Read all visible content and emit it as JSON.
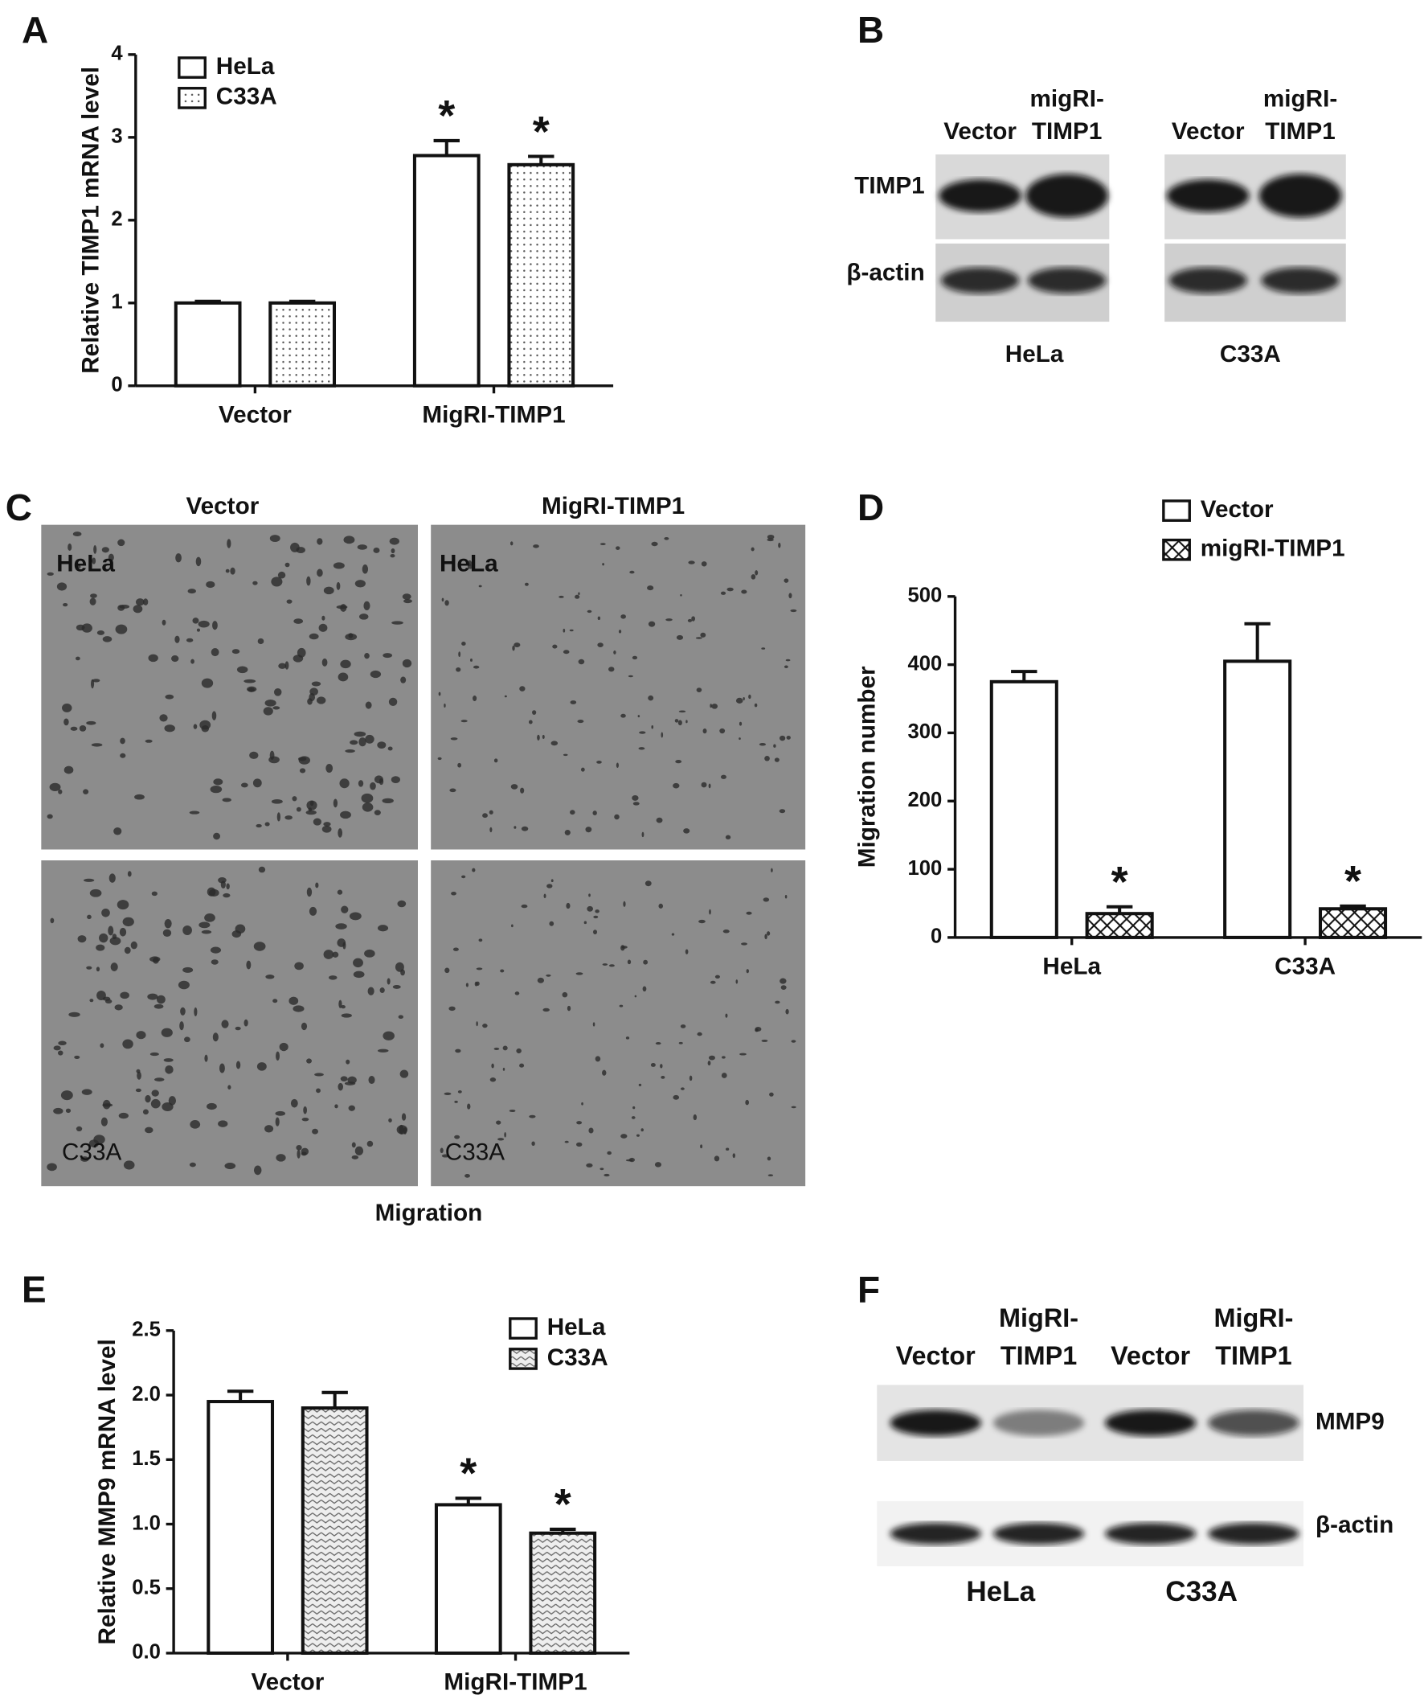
{
  "chart_data": [
    {
      "type": "bar",
      "panel": "A",
      "ylabel": "Relative TIMP1 mRNA level",
      "categories": [
        "Vector",
        "MigRI-TIMP1"
      ],
      "series": [
        {
          "name": "HeLa",
          "color": "#ffffff",
          "pattern": "none",
          "values": [
            1.0,
            2.78
          ],
          "errors": [
            0.02,
            0.18
          ],
          "markers": [
            null,
            "*"
          ]
        },
        {
          "name": "C33A",
          "color": "#ffffff",
          "pattern": "dots",
          "values": [
            1.0,
            2.67
          ],
          "errors": [
            0.02,
            0.1
          ],
          "markers": [
            null,
            "*"
          ]
        }
      ],
      "ylim": [
        0,
        4
      ],
      "yticks": [
        0,
        1,
        2,
        3,
        4
      ]
    },
    {
      "type": "bar",
      "panel": "D",
      "ylabel": "Migration number",
      "categories": [
        "HeLa",
        "C33A"
      ],
      "series": [
        {
          "name": "Vector",
          "color": "#ffffff",
          "pattern": "none",
          "values": [
            375,
            405
          ],
          "errors": [
            15,
            55
          ],
          "markers": [
            null,
            null
          ]
        },
        {
          "name": "migRI-TIMP1",
          "color": "#ffffff",
          "pattern": "crosshatch",
          "values": [
            35,
            42
          ],
          "errors": [
            10,
            4
          ],
          "markers": [
            "*",
            "*"
          ]
        }
      ],
      "ylim": [
        0,
        500
      ],
      "yticks": [
        0,
        100,
        200,
        300,
        400,
        500
      ]
    },
    {
      "type": "bar",
      "panel": "E",
      "ylabel": "Relative MMP9 mRNA level",
      "categories": [
        "Vector",
        "MigRI-TIMP1"
      ],
      "series": [
        {
          "name": "HeLa",
          "color": "#ffffff",
          "pattern": "none",
          "values": [
            1.95,
            1.15
          ],
          "errors": [
            0.08,
            0.05
          ],
          "markers": [
            null,
            "*"
          ]
        },
        {
          "name": "C33A",
          "color": "#ffffff",
          "pattern": "chevrons",
          "values": [
            1.9,
            0.93
          ],
          "errors": [
            0.12,
            0.03
          ],
          "markers": [
            null,
            "*"
          ]
        }
      ],
      "ylim": [
        0,
        2.5
      ],
      "yticks": [
        {
          "value": 0,
          "label": "0.0"
        },
        {
          "value": 0.5,
          "label": "0.5"
        },
        {
          "value": 1,
          "label": "1.0"
        },
        {
          "value": 1.5,
          "label": "1.5"
        },
        {
          "value": 2,
          "label": "2.0"
        },
        {
          "value": 2.5,
          "label": "2.5"
        }
      ]
    }
  ],
  "blot_b": {
    "panel": "B",
    "lanes": [
      [
        "Vector"
      ],
      [
        "migRI-",
        "TIMP1"
      ],
      [
        "Vector"
      ],
      [
        "migRI-",
        "TIMP1"
      ]
    ],
    "rows": [
      "TIMP1",
      "β-actin"
    ],
    "groups": [
      "HeLa",
      "C33A"
    ]
  },
  "micrographs_c": {
    "panel": "C",
    "columns": [
      "Vector",
      "MigRI-TIMP1"
    ],
    "labels": [
      [
        "HeLa",
        "HeLa"
      ],
      [
        "C33A",
        "C33A"
      ]
    ],
    "caption": "Migration"
  },
  "blot_f": {
    "panel": "F",
    "lanes": [
      [
        "Vector"
      ],
      [
        "MigRI-",
        "TIMP1"
      ],
      [
        "Vector"
      ],
      [
        "MigRI-",
        "TIMP1"
      ]
    ],
    "rows": [
      "MMP9",
      "β-actin"
    ],
    "groups": [
      "HeLa",
      "C33A"
    ]
  }
}
